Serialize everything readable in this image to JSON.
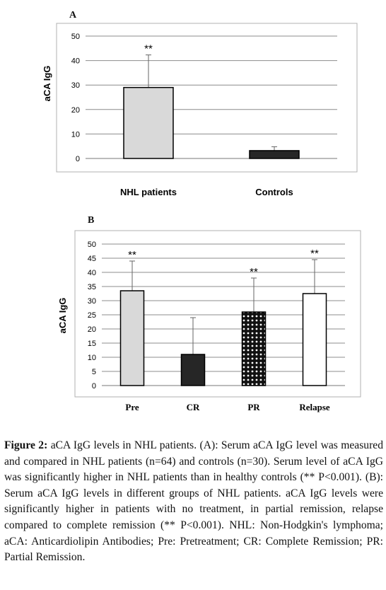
{
  "chart_data": [
    {
      "panel": "A",
      "type": "bar",
      "ylabel": "aCA  IgG",
      "xlabel": "",
      "ylim": [
        0,
        50
      ],
      "yticks": [
        0,
        10,
        20,
        30,
        40,
        50
      ],
      "categories": [
        "NHL patients",
        "Controls"
      ],
      "values": [
        29,
        3.2
      ],
      "error": [
        13.3,
        1.6
      ],
      "significance": [
        "**",
        ""
      ],
      "bar_colors": [
        "#d9d9d9",
        "#262626"
      ],
      "bar_patterns": [
        "solid",
        "solid"
      ],
      "grid": true,
      "tick_font": "sans-bold"
    },
    {
      "panel": "B",
      "type": "bar",
      "ylabel": "aCA  IgG",
      "xlabel": "",
      "ylim": [
        0,
        50
      ],
      "yticks": [
        0,
        5,
        10,
        15,
        20,
        25,
        30,
        35,
        40,
        45,
        50
      ],
      "categories": [
        "Pre",
        "CR",
        "PR",
        "Relapse"
      ],
      "values": [
        33.5,
        11,
        26,
        32.5
      ],
      "error": [
        10.5,
        13,
        12,
        12
      ],
      "significance": [
        "**",
        "",
        "**",
        "**"
      ],
      "bar_colors": [
        "#d9d9d9",
        "#262626",
        "#111111",
        "#ffffff"
      ],
      "bar_patterns": [
        "solid",
        "solid",
        "dotted",
        "solid"
      ],
      "grid": true,
      "tick_font": "serif-bold"
    }
  ],
  "caption": {
    "label": "Figure 2:",
    "text": " aCA IgG levels in NHL patients. (A): Serum aCA IgG level was measured and compared in NHL patients (n=64) and controls (n=30). Serum level of aCA IgG was significantly higher in NHL patients than in healthy controls (** P<0.001). (B): Serum aCA IgG levels in different groups of NHL patients. aCA IgG levels were significantly higher in patients with no treatment, in partial remission, relapse compared to complete remission (** P<0.001). NHL: Non-Hodgkin's lymphoma; aCA: Anticardiolipin Antibodies; Pre: Pretreatment; CR: Complete Remission; PR: Partial Remission."
  }
}
